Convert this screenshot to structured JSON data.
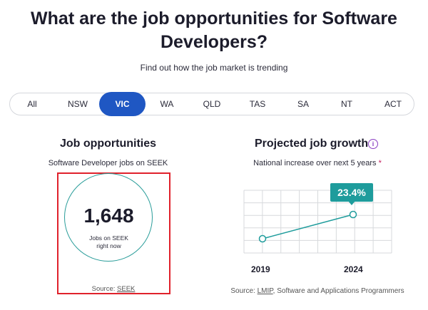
{
  "header": {
    "title_line1": "What are the job opportunities for Software",
    "title_line2": "Developers?",
    "subtitle": "Find out how the job market is trending"
  },
  "tabs": [
    {
      "label": "All"
    },
    {
      "label": "NSW"
    },
    {
      "label": "VIC",
      "active": true
    },
    {
      "label": "WA"
    },
    {
      "label": "QLD"
    },
    {
      "label": "TAS"
    },
    {
      "label": "SA"
    },
    {
      "label": "NT"
    },
    {
      "label": "ACT"
    }
  ],
  "opportunities": {
    "heading": "Job opportunities",
    "description": "Software Developer jobs on SEEK",
    "count": "1,648",
    "count_label_line1": "Jobs on SEEK",
    "count_label_line2": "right now",
    "source_prefix": "Source:",
    "source_link": "SEEK"
  },
  "growth": {
    "heading": "Projected job growth",
    "info_icon": "i",
    "description": "National increase over next 5 years",
    "asterisk": "*",
    "badge": "23.4%",
    "source_prefix": "Source:",
    "source_link": "LMIP",
    "source_suffix": ", Software and Applications Programmers"
  },
  "chart_data": {
    "type": "line",
    "x": [
      "2019",
      "2024"
    ],
    "series": [
      {
        "values": [
          0,
          23.4
        ]
      }
    ],
    "annotations": [
      "23.4%"
    ],
    "grid": true
  },
  "colors": {
    "accent_blue": "#1f57c3",
    "teal": "#1e9c9c",
    "highlight_red": "#e0212b",
    "info_purple": "#8a3fc2"
  }
}
